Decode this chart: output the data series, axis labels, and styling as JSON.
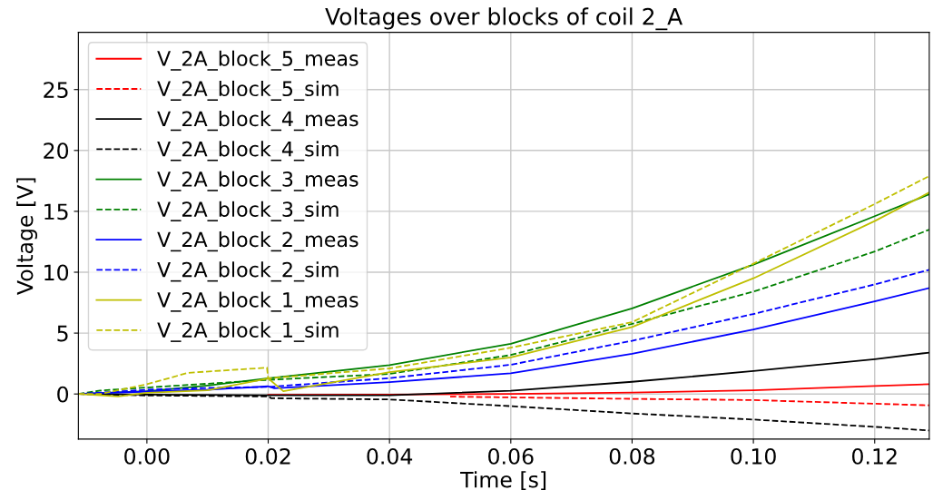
{
  "chart_data": {
    "type": "line",
    "title": "Voltages over blocks of coil 2_A",
    "xlabel": "Time [s]",
    "ylabel": "Voltage [V]",
    "xlim": [
      -0.0113,
      0.129
    ],
    "ylim": [
      -3.7,
      29.7
    ],
    "xticks": [
      {
        "value": 0.0,
        "label": "0.00"
      },
      {
        "value": 0.02,
        "label": "0.02"
      },
      {
        "value": 0.04,
        "label": "0.04"
      },
      {
        "value": 0.06,
        "label": "0.06"
      },
      {
        "value": 0.08,
        "label": "0.08"
      },
      {
        "value": 0.1,
        "label": "0.10"
      },
      {
        "value": 0.12,
        "label": "0.12"
      }
    ],
    "yticks": [
      0,
      5,
      10,
      15,
      20,
      25
    ],
    "grid": true,
    "legend": "top left",
    "series": [
      {
        "name": "V_2A_block_5_meas",
        "color": "#ff0000",
        "line_style": "solid",
        "x": [
          0.02,
          0.04,
          0.06,
          0.08,
          0.1,
          0.12,
          0.129
        ],
        "values": [
          -0.07,
          -0.05,
          0.0,
          0.12,
          0.3,
          0.65,
          0.8
        ]
      },
      {
        "name": "V_2A_block_5_sim",
        "color": "#ff0000",
        "line_style": "dashed",
        "x": [
          0.05,
          0.06,
          0.08,
          0.1,
          0.12,
          0.129
        ],
        "values": [
          -0.22,
          -0.28,
          -0.4,
          -0.5,
          -0.8,
          -0.93
        ]
      },
      {
        "name": "V_2A_block_4_meas",
        "color": "#000000",
        "line_style": "solid",
        "x": [
          -0.0113,
          0.0,
          0.02,
          0.04,
          0.06,
          0.08,
          0.1,
          0.12,
          0.129
        ],
        "values": [
          0.0,
          -0.05,
          -0.1,
          -0.1,
          0.26,
          1.0,
          1.88,
          2.86,
          3.4
        ]
      },
      {
        "name": "V_2A_block_4_sim",
        "color": "#000000",
        "line_style": "dashed",
        "x": [
          -0.0113,
          0.0,
          0.02,
          0.0205,
          0.04,
          0.06,
          0.08,
          0.1,
          0.12,
          0.129
        ],
        "values": [
          0.0,
          -0.12,
          -0.2,
          -0.35,
          -0.45,
          -1.0,
          -1.6,
          -2.1,
          -2.7,
          -3.0
        ]
      },
      {
        "name": "V_2A_block_3_meas",
        "color": "#008000",
        "line_style": "solid",
        "x": [
          -0.0113,
          0.0,
          0.01,
          0.02,
          0.04,
          0.06,
          0.08,
          0.1,
          0.12,
          0.129
        ],
        "values": [
          0.0,
          0.23,
          0.7,
          1.28,
          2.37,
          4.13,
          7.03,
          10.63,
          14.6,
          16.4
        ]
      },
      {
        "name": "V_2A_block_3_sim",
        "color": "#008000",
        "line_style": "dashed",
        "x": [
          -0.0113,
          -0.0077,
          0.0,
          0.02,
          0.04,
          0.06,
          0.08,
          0.1,
          0.12,
          0.129
        ],
        "values": [
          0.0,
          0.28,
          0.53,
          1.16,
          1.65,
          3.2,
          5.76,
          8.4,
          11.7,
          13.5
        ]
      },
      {
        "name": "V_2A_block_2_meas",
        "color": "#0000ff",
        "line_style": "solid",
        "x": [
          -0.0113,
          0.0,
          0.01,
          0.02,
          0.021,
          0.04,
          0.06,
          0.08,
          0.1,
          0.12,
          0.129
        ],
        "values": [
          0.0,
          0.2,
          0.35,
          0.63,
          0.47,
          0.97,
          1.7,
          3.3,
          5.3,
          7.6,
          8.7
        ]
      },
      {
        "name": "V_2A_block_2_sim",
        "color": "#0000ff",
        "line_style": "dashed",
        "x": [
          -0.0113,
          0.0,
          0.01,
          0.02,
          0.04,
          0.06,
          0.08,
          0.1,
          0.12,
          0.129
        ],
        "values": [
          0.0,
          0.35,
          0.5,
          0.58,
          1.3,
          2.4,
          4.37,
          6.57,
          9.0,
          10.2
        ]
      },
      {
        "name": "V_2A_block_1_meas",
        "color": "#bfbf00",
        "line_style": "solid",
        "x": [
          -0.0113,
          -0.0047,
          0.0,
          0.01,
          0.02,
          0.0225,
          0.04,
          0.06,
          0.08,
          0.1,
          0.12,
          0.129
        ],
        "values": [
          0.0,
          -0.2,
          0.1,
          0.3,
          1.28,
          0.23,
          1.8,
          3.0,
          5.5,
          9.5,
          14.2,
          16.55
        ]
      },
      {
        "name": "V_2A_block_1_sim",
        "color": "#bfbf00",
        "line_style": "dashed",
        "x": [
          -0.0113,
          -0.0077,
          0.0,
          0.0068,
          0.0198,
          0.02,
          0.04,
          0.06,
          0.08,
          0.1,
          0.12,
          0.129
        ],
        "values": [
          0.0,
          0.0,
          0.8,
          1.74,
          2.16,
          1.28,
          2.1,
          3.8,
          5.9,
          10.7,
          15.6,
          17.9
        ]
      }
    ]
  }
}
